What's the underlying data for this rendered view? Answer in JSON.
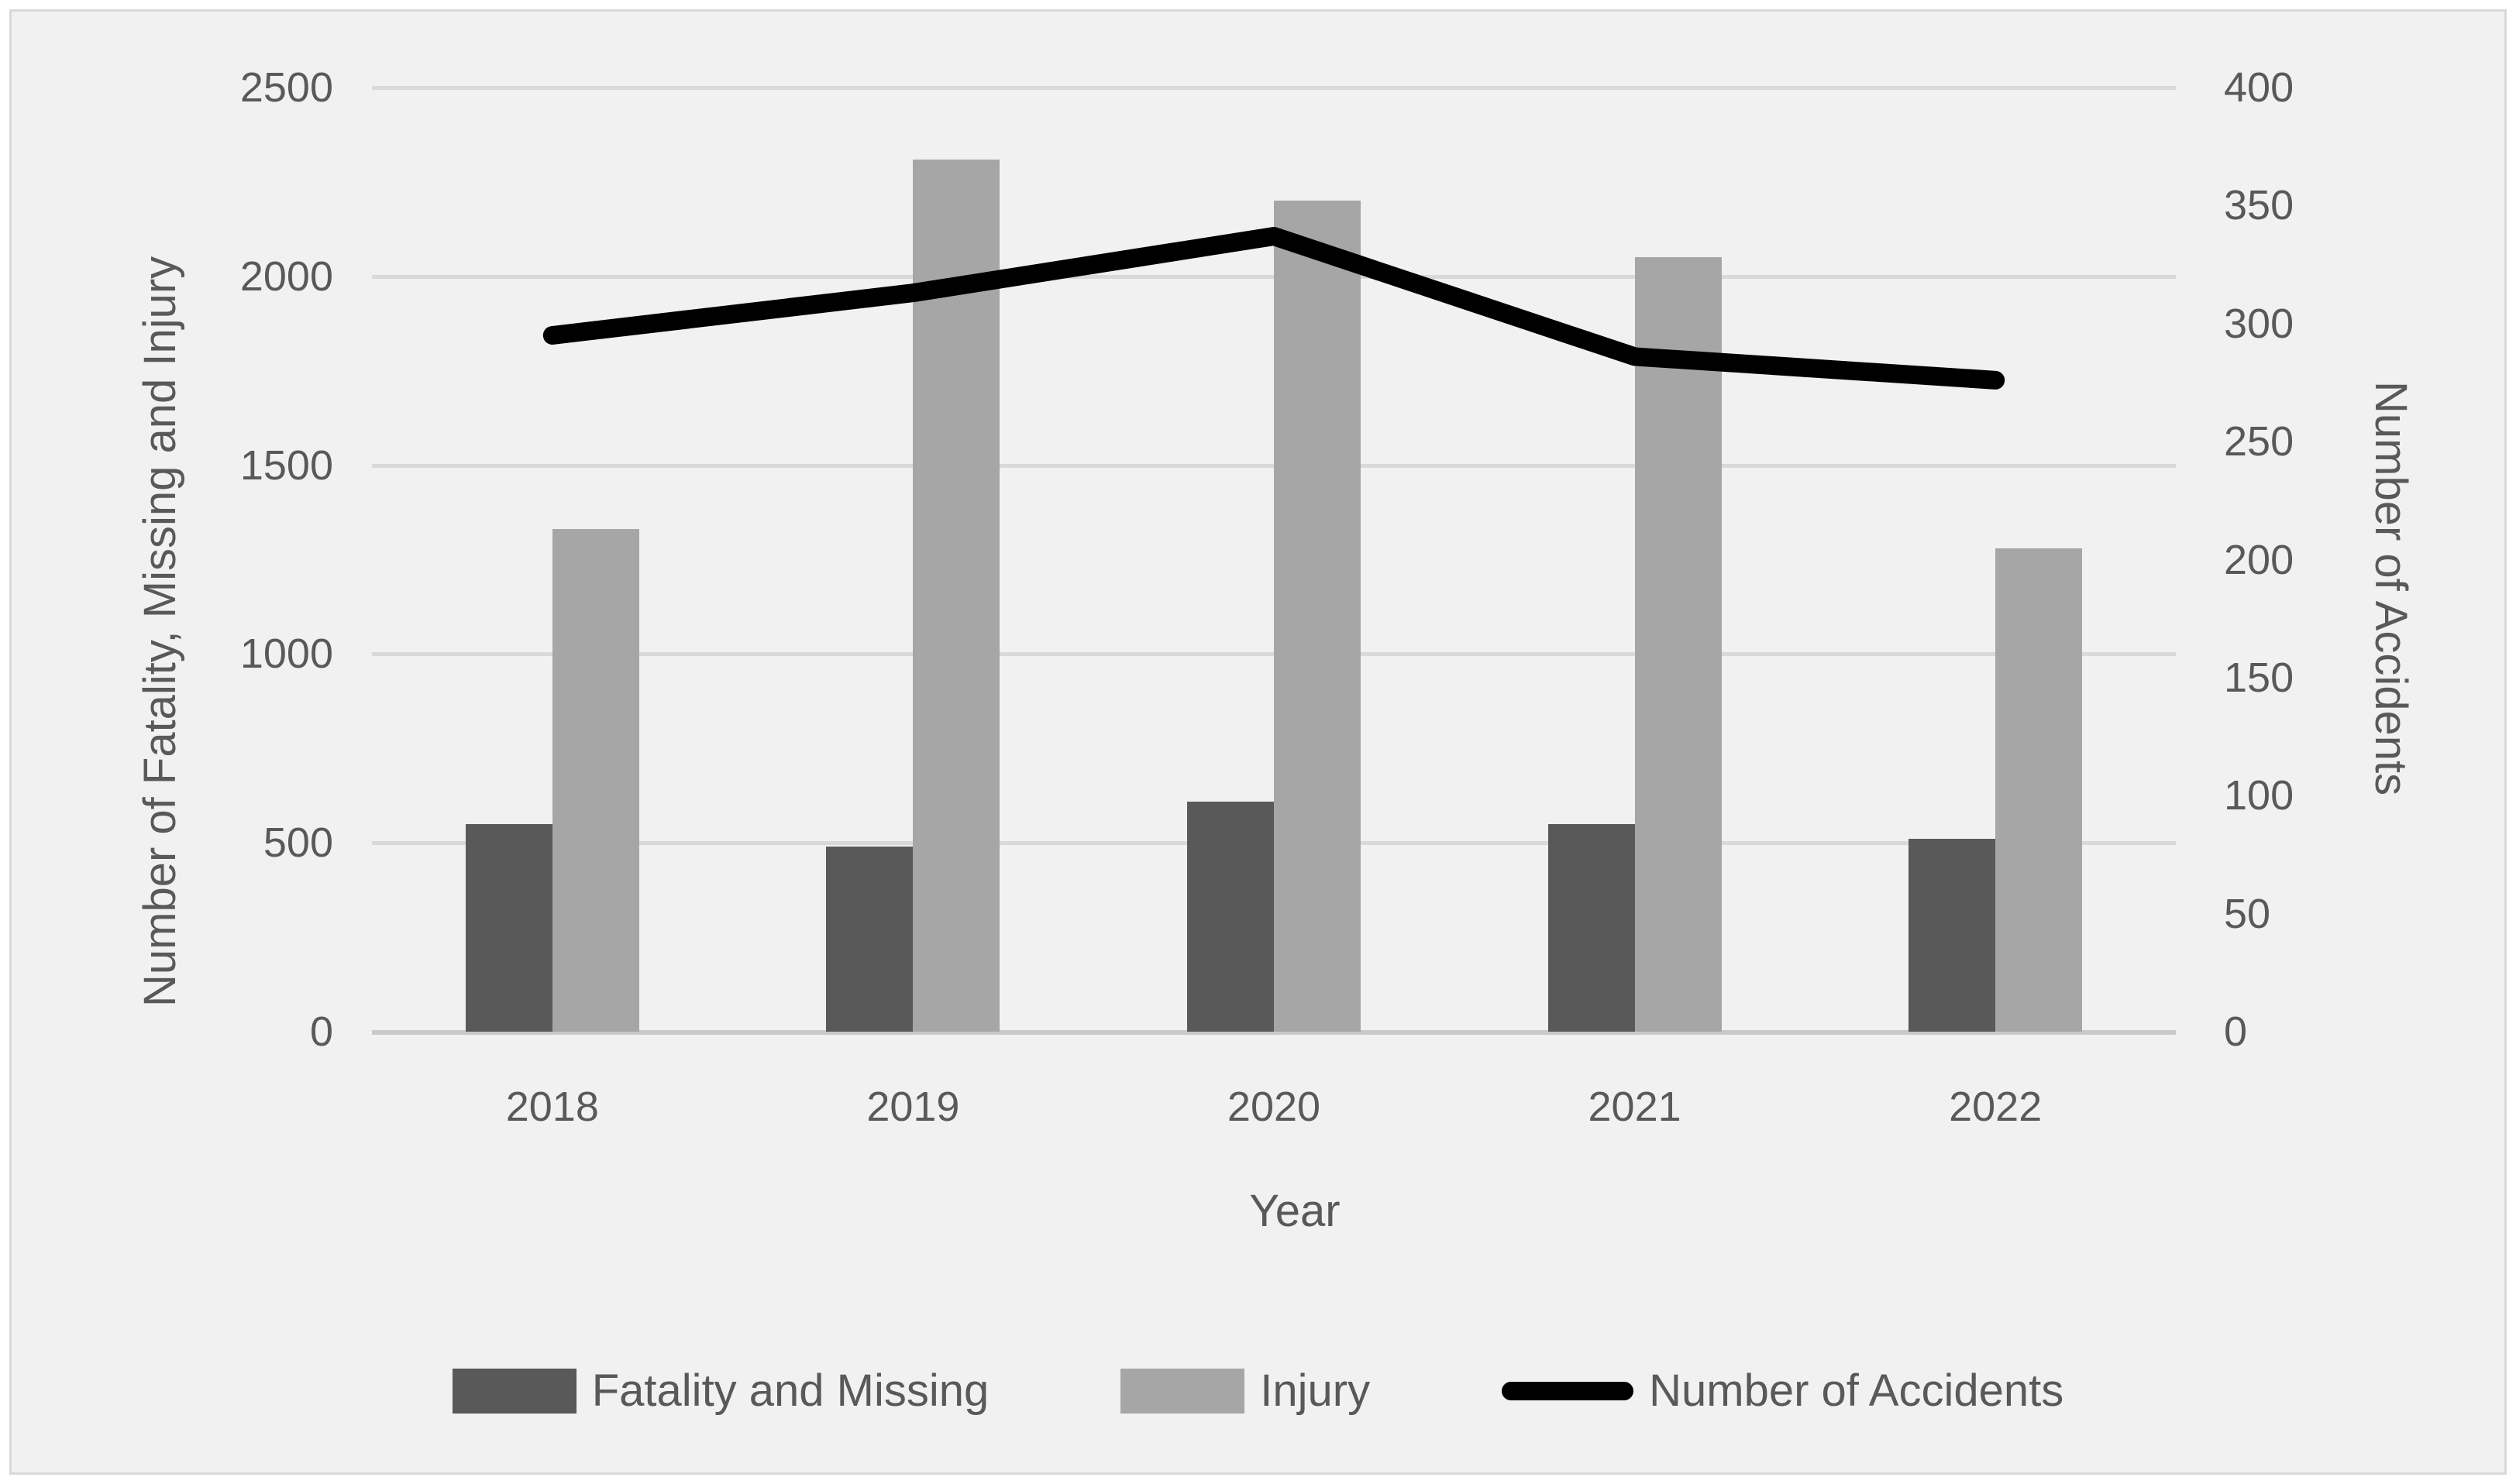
{
  "chart_data": {
    "type": "combo-bar-line",
    "categories": [
      "2018",
      "2019",
      "2020",
      "2021",
      "2022"
    ],
    "series": [
      {
        "name": "Fatality and Missing",
        "type": "bar",
        "axis": "left",
        "color": "#595959",
        "values": [
          550,
          490,
          610,
          550,
          510
        ]
      },
      {
        "name": "Injury",
        "type": "bar",
        "axis": "left",
        "color": "#a6a6a6",
        "values": [
          1330,
          2310,
          2200,
          2050,
          1280
        ]
      },
      {
        "name": "Number of Accidents",
        "type": "line",
        "axis": "right",
        "color": "#000000",
        "values": [
          295,
          313,
          337,
          286,
          276
        ]
      }
    ],
    "left_axis": {
      "title": "Number of Fatality, Missing and Injury",
      "min": 0,
      "max": 2500,
      "step": 500
    },
    "right_axis": {
      "title": "Number of Accidents",
      "min": 0,
      "max": 400,
      "step": 50
    },
    "x_axis": {
      "title": "Year"
    },
    "legend_position": "bottom",
    "grid": true,
    "colors": {
      "background": "#f1f1f1",
      "border": "#d9d9d9",
      "gridline": "#d9d9d9",
      "axis_line": "#c9c9c9",
      "text": "#595959"
    }
  }
}
